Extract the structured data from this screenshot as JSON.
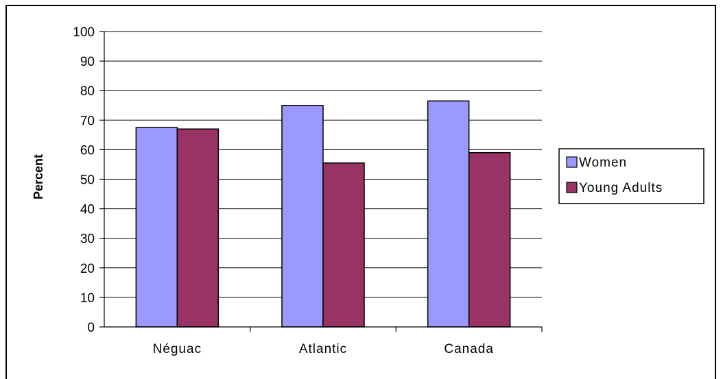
{
  "chart_data": {
    "type": "bar",
    "categories": [
      "Néguac",
      "Atlantic",
      "Canada"
    ],
    "series": [
      {
        "name": "Women",
        "values": [
          67.5,
          75,
          76.5
        ],
        "color": "#9999ff"
      },
      {
        "name": "Young Adults",
        "values": [
          67,
          55.5,
          59
        ],
        "color": "#993366"
      }
    ],
    "title": "",
    "xlabel": "",
    "ylabel": "Percent",
    "ylim": [
      0,
      100
    ],
    "yticks": [
      "0",
      "10",
      "20",
      "30",
      "40",
      "50",
      "60",
      "70",
      "80",
      "90",
      "100"
    ],
    "grid": true,
    "legend_position": "right"
  }
}
